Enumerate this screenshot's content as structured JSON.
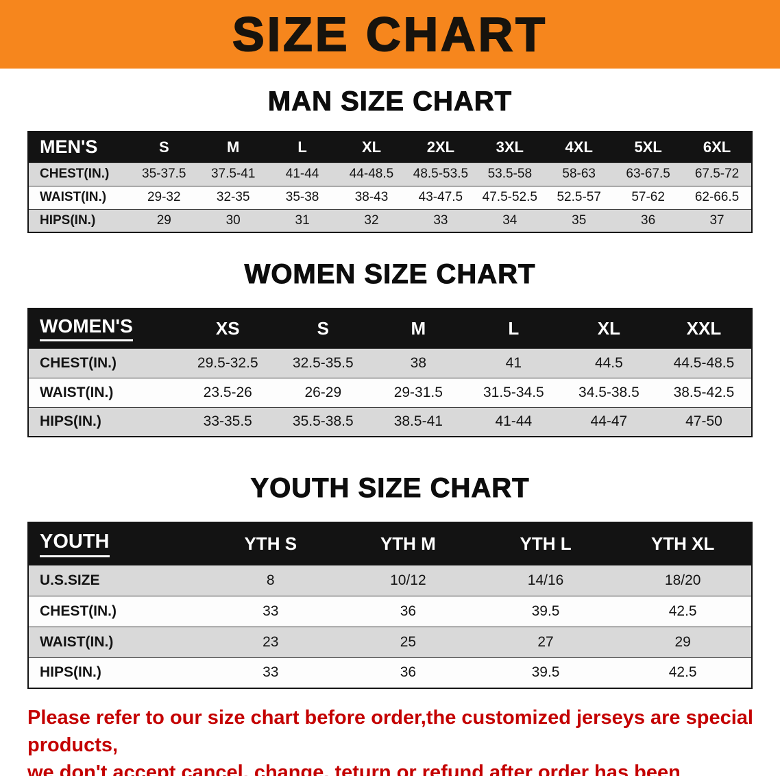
{
  "banner": {
    "title": "SIZE CHART",
    "bg_color": "#F6861D",
    "text_color": "#17130D"
  },
  "colors": {
    "table_header_bg": "#131313",
    "row_stripe_gray": "#D9D9D9",
    "disclaimer_red": "#C40000"
  },
  "sections": [
    {
      "heading": "MAN SIZE CHART",
      "table": {
        "label_header": "MEN'S",
        "columns": [
          "S",
          "M",
          "L",
          "XL",
          "2XL",
          "3XL",
          "4XL",
          "5XL",
          "6XL"
        ],
        "rows": [
          {
            "label": "CHEST(IN.)",
            "values": [
              "35-37.5",
              "37.5-41",
              "41-44",
              "44-48.5",
              "48.5-53.5",
              "53.5-58",
              "58-63",
              "63-67.5",
              "67.5-72"
            ]
          },
          {
            "label": "WAIST(IN.)",
            "values": [
              "29-32",
              "32-35",
              "35-38",
              "38-43",
              "43-47.5",
              "47.5-52.5",
              "52.5-57",
              "57-62",
              "62-66.5"
            ]
          },
          {
            "label": "HIPS(IN.)",
            "values": [
              "29",
              "30",
              "31",
              "32",
              "33",
              "34",
              "35",
              "36",
              "37"
            ]
          }
        ]
      }
    },
    {
      "heading": "WOMEN SIZE CHART",
      "table": {
        "label_header": "WOMEN'S",
        "columns": [
          "XS",
          "S",
          "M",
          "L",
          "XL",
          "XXL"
        ],
        "rows": [
          {
            "label": "CHEST(IN.)",
            "values": [
              "29.5-32.5",
              "32.5-35.5",
              "38",
              "41",
              "44.5",
              "44.5-48.5"
            ]
          },
          {
            "label": "WAIST(IN.)",
            "values": [
              "23.5-26",
              "26-29",
              "29-31.5",
              "31.5-34.5",
              "34.5-38.5",
              "38.5-42.5"
            ]
          },
          {
            "label": "HIPS(IN.)",
            "values": [
              "33-35.5",
              "35.5-38.5",
              "38.5-41",
              "41-44",
              "44-47",
              "47-50"
            ]
          }
        ]
      }
    },
    {
      "heading": "YOUTH SIZE CHART",
      "table": {
        "label_header": "YOUTH",
        "columns": [
          "YTH S",
          "YTH M",
          "YTH L",
          "YTH XL"
        ],
        "rows": [
          {
            "label": "U.S.SIZE",
            "values": [
              "8",
              "10/12",
              "14/16",
              "18/20"
            ]
          },
          {
            "label": "CHEST(IN.)",
            "values": [
              "33",
              "36",
              "39.5",
              "42.5"
            ]
          },
          {
            "label": "WAIST(IN.)",
            "values": [
              "23",
              "25",
              "27",
              "29"
            ]
          },
          {
            "label": "HIPS(IN.)",
            "values": [
              "33",
              "36",
              "39.5",
              "42.5"
            ]
          }
        ]
      }
    }
  ],
  "disclaimer": {
    "line1": "Please refer to our size chart before order,the customized jerseys are special products,",
    "line2": "we don't accept cancel, change, teturn or refund after order has been placed!"
  }
}
